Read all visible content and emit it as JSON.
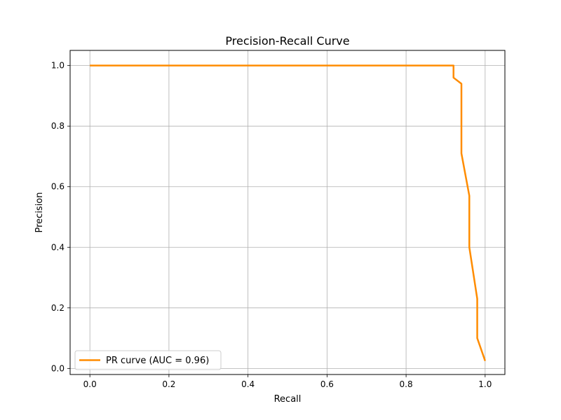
{
  "chart_data": {
    "type": "line",
    "title": "Precision-Recall Curve",
    "xlabel": "Recall",
    "ylabel": "Precision",
    "xlim": [
      -0.05,
      1.05
    ],
    "ylim": [
      -0.02,
      1.05
    ],
    "xticks": [
      0.0,
      0.2,
      0.4,
      0.6,
      0.8,
      1.0
    ],
    "yticks": [
      0.0,
      0.2,
      0.4,
      0.6,
      0.8,
      1.0
    ],
    "xtick_labels": [
      "0.0",
      "0.2",
      "0.4",
      "0.6",
      "0.8",
      "1.0"
    ],
    "ytick_labels": [
      "0.0",
      "0.2",
      "0.4",
      "0.6",
      "0.8",
      "1.0"
    ],
    "grid": true,
    "legend_position": "lower-left",
    "series": [
      {
        "name": "PR curve (AUC = 0.96)",
        "color": "#ff8c00",
        "x": [
          0.0,
          0.92,
          0.92,
          0.94,
          0.94,
          0.96,
          0.96,
          0.98,
          0.98,
          1.0
        ],
        "y": [
          1.0,
          1.0,
          0.96,
          0.94,
          0.71,
          0.57,
          0.4,
          0.23,
          0.1,
          0.025
        ]
      }
    ]
  }
}
